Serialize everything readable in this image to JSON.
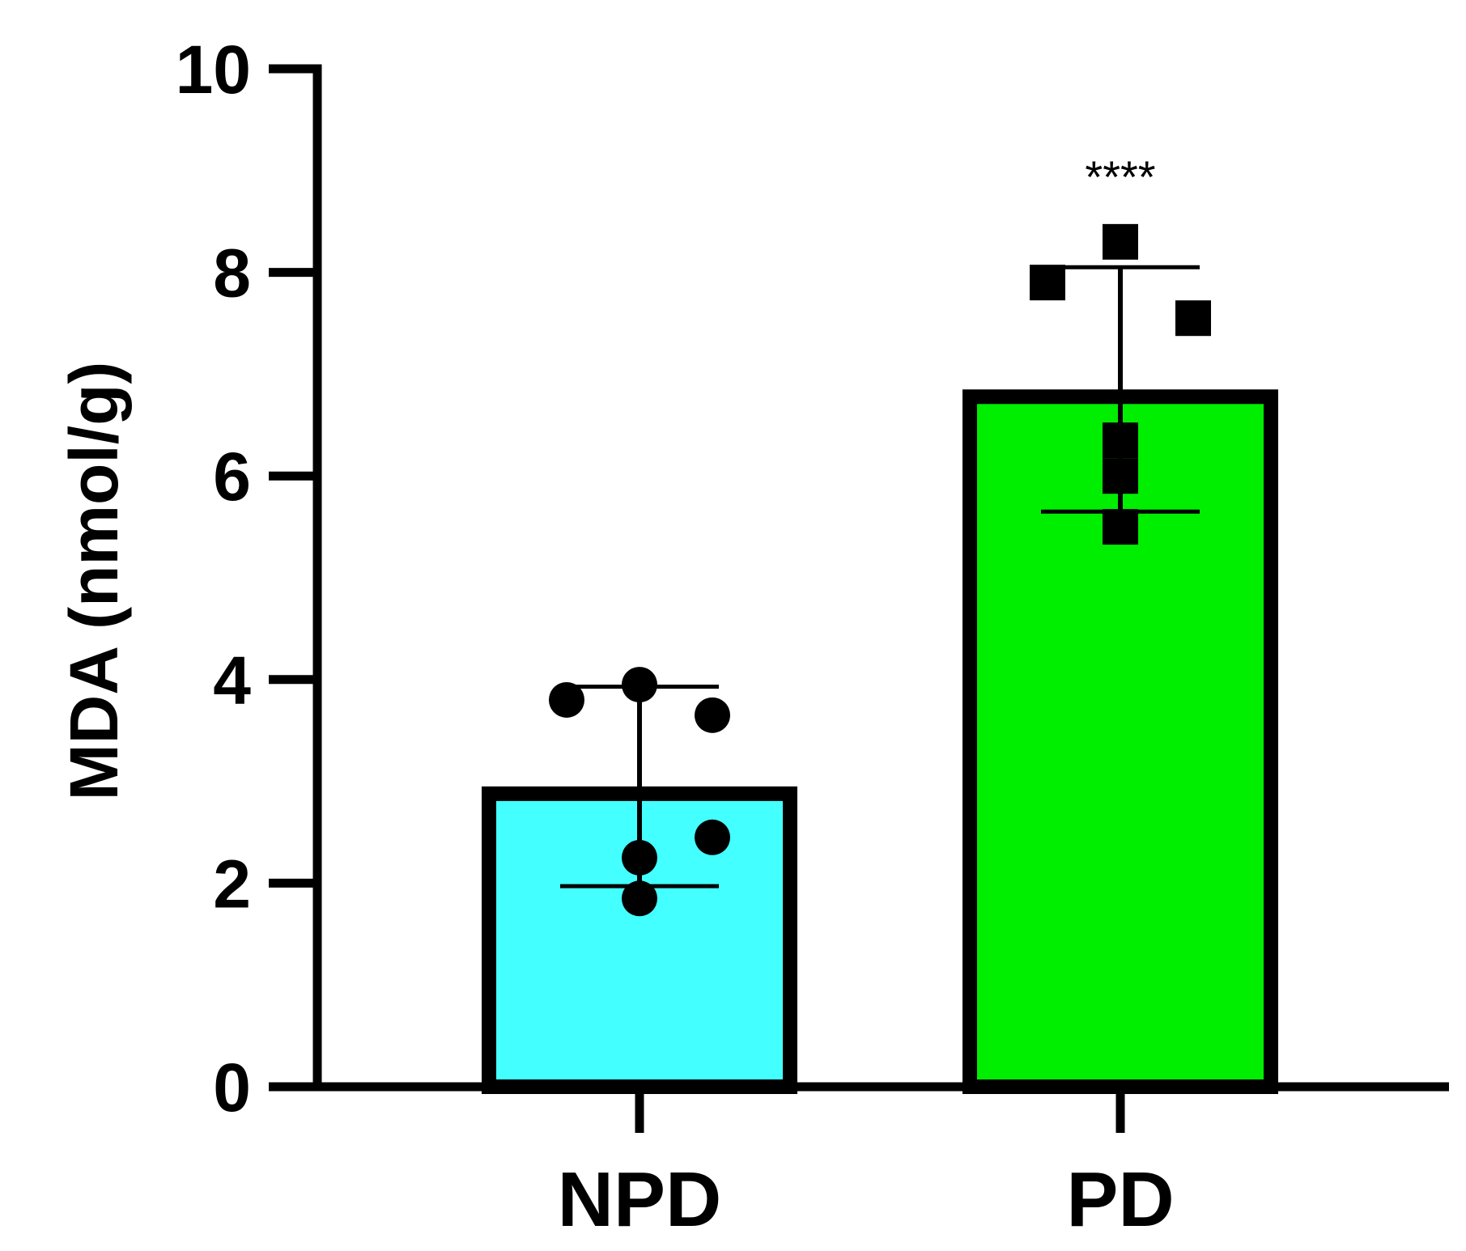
{
  "chart_data": {
    "type": "bar",
    "title": "",
    "xlabel": "",
    "ylabel": "MDA (nmol/g)",
    "ylim": [
      0,
      10
    ],
    "yticks": [
      "0",
      "2",
      "4",
      "6",
      "8",
      "10"
    ],
    "categories": [
      "NPD",
      "PD"
    ],
    "values": [
      2.95,
      6.85
    ],
    "error": [
      0.98,
      1.2
    ],
    "colors": [
      "#44FFFF",
      "#00EE00"
    ],
    "points": [
      {
        "category": "NPD",
        "marker": "circle",
        "values": [
          3.8,
          3.95,
          3.65,
          2.45,
          2.25,
          1.85
        ]
      },
      {
        "category": "PD",
        "marker": "square",
        "values": [
          7.9,
          8.3,
          7.55,
          6.35,
          6.0,
          5.5
        ]
      }
    ],
    "annotations": [
      {
        "category": "PD",
        "text": "****"
      }
    ],
    "grid": false
  }
}
